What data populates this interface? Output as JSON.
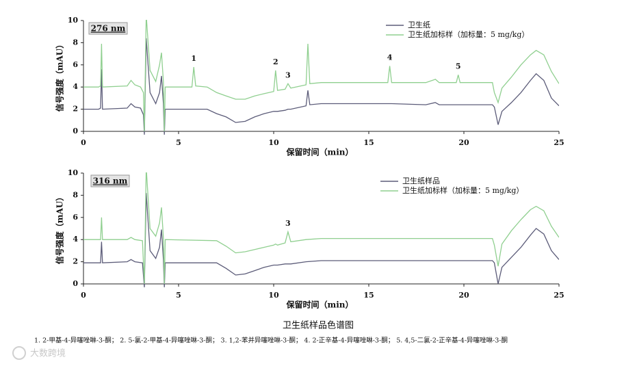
{
  "chart_data": [
    {
      "type": "line",
      "label": "276 nm",
      "xlabel": "保留时间（min）",
      "ylabel": "信号强度（mAU）",
      "xlim": [
        0,
        25
      ],
      "ylim": [
        0,
        10
      ],
      "xticks": [
        0,
        5,
        10,
        15,
        20,
        25
      ],
      "yticks": [
        0,
        2,
        4,
        6,
        8,
        10
      ],
      "x": [
        0,
        0.8,
        0.9,
        0.95,
        1.0,
        2.3,
        2.5,
        2.7,
        3.0,
        3.15,
        3.2,
        3.3,
        3.5,
        3.8,
        4.0,
        4.1,
        4.2,
        4.25,
        4.3,
        5.0,
        5.7,
        5.8,
        5.9,
        6.5,
        7.0,
        7.5,
        8.0,
        8.5,
        9.0,
        9.5,
        10.0,
        10.1,
        10.2,
        10.6,
        10.75,
        10.9,
        11.7,
        11.8,
        11.9,
        12.5,
        14,
        15,
        16,
        16.1,
        16.2,
        18,
        18.5,
        18.7,
        19.6,
        19.7,
        19.8,
        21.5,
        21.6,
        21.8,
        22.0,
        22.5,
        23.0,
        23.5,
        23.8,
        24.2,
        24.6,
        25
      ],
      "series": [
        {
          "name": "卫生纸",
          "color": "#5b5b78",
          "values": [
            2.0,
            2.0,
            2.1,
            5.6,
            2.0,
            2.1,
            2.5,
            2.2,
            2.1,
            1.5,
            -0.3,
            8.4,
            3.5,
            2.5,
            3.5,
            5.0,
            2.5,
            -0.3,
            2.0,
            2.0,
            2.0,
            2.0,
            2.0,
            2.0,
            1.6,
            1.3,
            0.8,
            0.9,
            1.3,
            1.6,
            1.8,
            1.8,
            1.8,
            1.9,
            2.0,
            2.0,
            2.3,
            3.7,
            2.4,
            2.5,
            2.5,
            2.5,
            2.5,
            2.5,
            2.5,
            2.4,
            2.6,
            2.4,
            2.4,
            2.4,
            2.4,
            2.4,
            2.2,
            0.6,
            1.8,
            2.6,
            3.5,
            4.6,
            5.2,
            4.6,
            3.0,
            2.3
          ]
        },
        {
          "name": "卫生纸加标样（加标量：5 mg/kg）",
          "color": "#8fcf8f",
          "values": [
            4.0,
            4.0,
            4.1,
            7.9,
            4.0,
            4.1,
            4.6,
            4.2,
            4.0,
            3.5,
            0,
            10.5,
            5.5,
            4.5,
            6.0,
            7.1,
            4.5,
            0,
            4.0,
            4.0,
            4.0,
            5.8,
            4.1,
            4.0,
            3.5,
            3.2,
            2.9,
            2.9,
            3.2,
            3.4,
            3.6,
            5.5,
            3.7,
            3.8,
            4.3,
            3.9,
            4.2,
            7.9,
            4.3,
            4.4,
            4.4,
            4.4,
            4.4,
            5.9,
            4.4,
            4.4,
            4.7,
            4.4,
            4.4,
            5.1,
            4.4,
            4.4,
            3.5,
            2.6,
            3.9,
            4.9,
            6.0,
            6.9,
            7.3,
            6.9,
            5.4,
            4.3
          ]
        }
      ],
      "annotations": [
        {
          "label": "1",
          "x": 5.8
        },
        {
          "label": "2",
          "x": 10.1
        },
        {
          "label": "3",
          "x": 10.75
        },
        {
          "label": "4",
          "x": 16.1
        },
        {
          "label": "5",
          "x": 19.7
        }
      ]
    },
    {
      "type": "line",
      "label": "316 nm",
      "xlabel": "保留时间（min）",
      "ylabel": "信号强度（mAU）",
      "xlim": [
        0,
        25
      ],
      "ylim": [
        0,
        10
      ],
      "xticks": [
        0,
        5,
        10,
        15,
        20,
        25
      ],
      "yticks": [
        0,
        2,
        4,
        6,
        8,
        10
      ],
      "x": [
        0,
        0.9,
        0.95,
        1.0,
        2.3,
        2.5,
        2.7,
        3.1,
        3.2,
        3.3,
        3.5,
        3.8,
        4.0,
        4.1,
        4.2,
        4.25,
        4.3,
        7.0,
        7.5,
        8.0,
        8.5,
        9.0,
        9.5,
        10.0,
        10.1,
        10.2,
        10.6,
        10.75,
        10.9,
        11.7,
        12.5,
        15,
        18,
        21.5,
        21.6,
        21.8,
        22.0,
        22.5,
        23.0,
        23.5,
        23.8,
        24.2,
        24.6,
        25
      ],
      "series": [
        {
          "name": "卫生纸样品",
          "color": "#5b5b78",
          "values": [
            1.9,
            1.9,
            3.8,
            1.9,
            2.0,
            2.2,
            2.0,
            1.9,
            -0.3,
            8.2,
            3.0,
            2.3,
            3.3,
            4.9,
            2.2,
            -0.3,
            1.9,
            1.9,
            1.4,
            0.8,
            0.9,
            1.2,
            1.5,
            1.7,
            1.7,
            1.7,
            1.8,
            1.8,
            1.8,
            2.0,
            2.1,
            2.1,
            2.1,
            2.1,
            1.9,
            0,
            1.5,
            2.4,
            3.3,
            4.4,
            5.0,
            4.5,
            3.0,
            2.2
          ]
        },
        {
          "name": "卫生纸加标样（加标量：5 mg/kg）",
          "color": "#8fcf8f",
          "values": [
            4.0,
            4.0,
            6.0,
            4.0,
            4.0,
            4.2,
            4.0,
            3.9,
            0,
            10.5,
            5.0,
            4.3,
            5.5,
            6.9,
            4.2,
            0,
            4.0,
            3.9,
            3.4,
            2.8,
            2.9,
            3.1,
            3.3,
            3.5,
            3.6,
            3.5,
            3.7,
            4.7,
            3.8,
            4.0,
            4.1,
            4.1,
            4.1,
            4.1,
            3.5,
            1.6,
            3.6,
            4.8,
            5.8,
            6.7,
            7.0,
            6.6,
            5.2,
            4.2
          ]
        }
      ],
      "annotations": [
        {
          "label": "3",
          "x": 10.75
        }
      ]
    }
  ],
  "caption": "卫生纸样品色谱图",
  "footnote": "1.  2-甲基-4-异噻唑啉-3-酮；  2.  5-氯-2-甲基-4-异噻唑啉-3-酮；  3.  1,2-苯并异噻唑啉-3-酮；  4.  2-正辛基-4-异噻唑啉-3-酮；  5.  4,5-二氯-2-正辛基-4-异噻唑啉-3-酮",
  "watermark": "大数跨境"
}
